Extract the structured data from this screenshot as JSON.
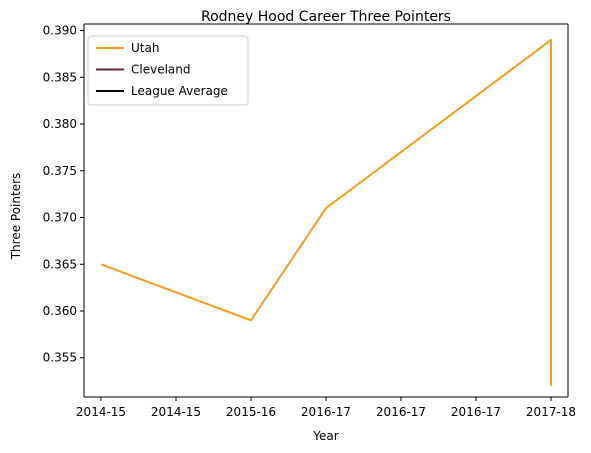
{
  "chart_data": {
    "type": "line",
    "title": "Rodney Hood Career Three Pointers",
    "xlabel": "Year",
    "ylabel": "Three Pointers",
    "x_tick_labels": [
      "2014-15",
      "2014-15",
      "2015-16",
      "2016-17",
      "2016-17",
      "2016-17",
      "2017-18"
    ],
    "y_ticks": [
      "0.355",
      "0.360",
      "0.365",
      "0.370",
      "0.375",
      "0.380",
      "0.385",
      "0.390"
    ],
    "ylim": [
      0.3508,
      0.3907
    ],
    "grid": false,
    "legend": {
      "placement": "upper-left",
      "entries": [
        {
          "label": "Utah",
          "color": "#f39c1e"
        },
        {
          "label": "Cleveland",
          "color": "#6f263d"
        },
        {
          "label": "League Average",
          "color": "#000000"
        }
      ]
    },
    "series": [
      {
        "name": "Utah",
        "color": "#f39c1e",
        "points": [
          {
            "x": "2014-15",
            "y": 0.365
          },
          {
            "x": "2015-16",
            "y": 0.359
          },
          {
            "x": "2016-17",
            "y": 0.371
          },
          {
            "x": "2017-18",
            "y": 0.389
          },
          {
            "x": "2017-18",
            "y": 0.352
          }
        ]
      }
    ]
  }
}
